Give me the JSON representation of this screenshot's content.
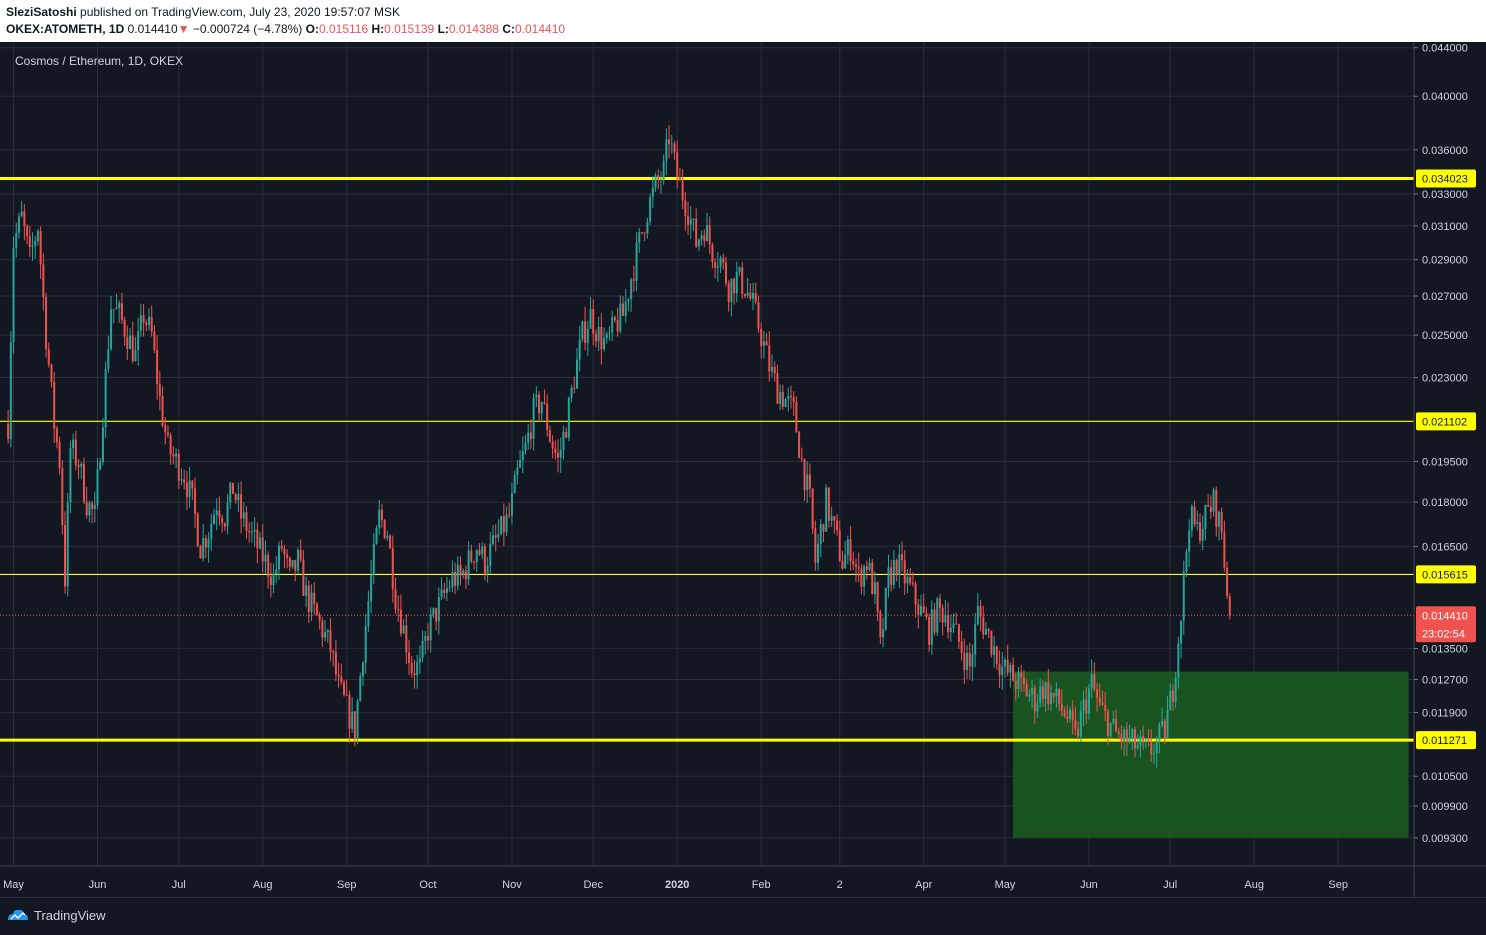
{
  "header": {
    "author": "SleziSatoshi",
    "published_text": "published on TradingView.com, July 23, 2020 19:57:07 MSK",
    "symbol_tf": "OKEX:ATOMETH, 1D",
    "last": "0.014410",
    "change_arrow": "▼",
    "change": "−0.000724 (−4.78%)",
    "o_label": "O:",
    "o": "0.015116",
    "h_label": "H:",
    "h": "0.015139",
    "l_label": "L:",
    "l": "0.014388",
    "c_label": "C:",
    "c": "0.014410"
  },
  "footer": {
    "brand": "TradingView"
  },
  "chart_data": {
    "type": "candlestick",
    "title": "Cosmos / Ethereum, 1D, OKEX",
    "y_scale": "log",
    "ylim": [
      0.0088,
      0.0445
    ],
    "y_ticks": [
      "0.044000",
      "0.040000",
      "0.036000",
      "0.033000",
      "0.031000",
      "0.029000",
      "0.027000",
      "0.025000",
      "0.023000",
      "0.019500",
      "0.018000",
      "0.016500",
      "0.013500",
      "0.012700",
      "0.011900",
      "0.010500",
      "0.009900",
      "0.009300"
    ],
    "x_ticks": [
      "May",
      "Jun",
      "Jul",
      "Aug",
      "Sep",
      "Oct",
      "Nov",
      "Dec",
      "2020",
      "Feb",
      "2",
      "Apr",
      "May",
      "Jun",
      "Jul",
      "Aug",
      "Sep"
    ],
    "x_tick_days": [
      0,
      31,
      61,
      92,
      123,
      153,
      184,
      214,
      245,
      276,
      305,
      336,
      366,
      397,
      427,
      458,
      489
    ],
    "x_range_days": [
      -5,
      517
    ],
    "price_points": [
      [
        -2,
        0.021
      ],
      [
        0,
        0.03
      ],
      [
        3,
        0.0315
      ],
      [
        6,
        0.029
      ],
      [
        9,
        0.031
      ],
      [
        12,
        0.025
      ],
      [
        15,
        0.021
      ],
      [
        17,
        0.0195
      ],
      [
        19,
        0.0155
      ],
      [
        21,
        0.02
      ],
      [
        24,
        0.0195
      ],
      [
        27,
        0.018
      ],
      [
        30,
        0.0175
      ],
      [
        33,
        0.0215
      ],
      [
        36,
        0.0265
      ],
      [
        39,
        0.026
      ],
      [
        42,
        0.025
      ],
      [
        45,
        0.024
      ],
      [
        48,
        0.026
      ],
      [
        51,
        0.025
      ],
      [
        54,
        0.022
      ],
      [
        57,
        0.02
      ],
      [
        60,
        0.0195
      ],
      [
        63,
        0.019
      ],
      [
        66,
        0.018
      ],
      [
        69,
        0.0165
      ],
      [
        72,
        0.017
      ],
      [
        75,
        0.018
      ],
      [
        78,
        0.0175
      ],
      [
        81,
        0.0185
      ],
      [
        84,
        0.0175
      ],
      [
        87,
        0.017
      ],
      [
        90,
        0.0165
      ],
      [
        93,
        0.016
      ],
      [
        96,
        0.0155
      ],
      [
        99,
        0.0165
      ],
      [
        102,
        0.0155
      ],
      [
        105,
        0.016
      ],
      [
        108,
        0.015
      ],
      [
        111,
        0.0145
      ],
      [
        114,
        0.014
      ],
      [
        117,
        0.0135
      ],
      [
        120,
        0.0125
      ],
      [
        123,
        0.012
      ],
      [
        126,
        0.0115
      ],
      [
        129,
        0.0135
      ],
      [
        132,
        0.0155
      ],
      [
        135,
        0.0175
      ],
      [
        138,
        0.017
      ],
      [
        141,
        0.015
      ],
      [
        144,
        0.014
      ],
      [
        147,
        0.013
      ],
      [
        150,
        0.013
      ],
      [
        153,
        0.014
      ],
      [
        156,
        0.0145
      ],
      [
        159,
        0.015
      ],
      [
        162,
        0.0155
      ],
      [
        165,
        0.0155
      ],
      [
        168,
        0.016
      ],
      [
        171,
        0.0165
      ],
      [
        174,
        0.016
      ],
      [
        177,
        0.0165
      ],
      [
        180,
        0.017
      ],
      [
        183,
        0.0175
      ],
      [
        186,
        0.019
      ],
      [
        189,
        0.02
      ],
      [
        192,
        0.0215
      ],
      [
        195,
        0.022
      ],
      [
        198,
        0.0205
      ],
      [
        201,
        0.0195
      ],
      [
        204,
        0.021
      ],
      [
        207,
        0.023
      ],
      [
        210,
        0.025
      ],
      [
        213,
        0.026
      ],
      [
        216,
        0.025
      ],
      [
        219,
        0.0245
      ],
      [
        222,
        0.0255
      ],
      [
        225,
        0.026
      ],
      [
        228,
        0.028
      ],
      [
        231,
        0.03
      ],
      [
        234,
        0.032
      ],
      [
        237,
        0.0335
      ],
      [
        240,
        0.0345
      ],
      [
        242,
        0.037
      ],
      [
        244,
        0.035
      ],
      [
        246,
        0.0335
      ],
      [
        249,
        0.032
      ],
      [
        252,
        0.03
      ],
      [
        255,
        0.031
      ],
      [
        258,
        0.0295
      ],
      [
        261,
        0.029
      ],
      [
        264,
        0.0275
      ],
      [
        267,
        0.028
      ],
      [
        270,
        0.0275
      ],
      [
        273,
        0.0265
      ],
      [
        276,
        0.025
      ],
      [
        279,
        0.0235
      ],
      [
        282,
        0.0225
      ],
      [
        285,
        0.022
      ],
      [
        288,
        0.0215
      ],
      [
        291,
        0.0195
      ],
      [
        294,
        0.018
      ],
      [
        296,
        0.016
      ],
      [
        298,
        0.017
      ],
      [
        300,
        0.018
      ],
      [
        303,
        0.017
      ],
      [
        306,
        0.016
      ],
      [
        309,
        0.0165
      ],
      [
        312,
        0.0155
      ],
      [
        315,
        0.016
      ],
      [
        318,
        0.015
      ],
      [
        320,
        0.0135
      ],
      [
        323,
        0.0155
      ],
      [
        326,
        0.016
      ],
      [
        329,
        0.0155
      ],
      [
        332,
        0.015
      ],
      [
        335,
        0.0145
      ],
      [
        338,
        0.014
      ],
      [
        341,
        0.0145
      ],
      [
        344,
        0.0145
      ],
      [
        347,
        0.014
      ],
      [
        350,
        0.0135
      ],
      [
        353,
        0.013
      ],
      [
        356,
        0.0145
      ],
      [
        359,
        0.014
      ],
      [
        362,
        0.0135
      ],
      [
        365,
        0.013
      ],
      [
        368,
        0.0128
      ],
      [
        371,
        0.0126
      ],
      [
        374,
        0.0124
      ],
      [
        377,
        0.0122
      ],
      [
        380,
        0.0125
      ],
      [
        383,
        0.0123
      ],
      [
        386,
        0.0121
      ],
      [
        389,
        0.0118
      ],
      [
        392,
        0.0113
      ],
      [
        395,
        0.012
      ],
      [
        398,
        0.0126
      ],
      [
        401,
        0.012
      ],
      [
        404,
        0.0117
      ],
      [
        407,
        0.0114
      ],
      [
        410,
        0.0113
      ],
      [
        413,
        0.0112
      ],
      [
        416,
        0.0111
      ],
      [
        419,
        0.011
      ],
      [
        422,
        0.0112
      ],
      [
        425,
        0.0115
      ],
      [
        428,
        0.0125
      ],
      [
        431,
        0.0145
      ],
      [
        434,
        0.0175
      ],
      [
        437,
        0.017
      ],
      [
        440,
        0.0175
      ],
      [
        443,
        0.018
      ],
      [
        446,
        0.017
      ],
      [
        448,
        0.0151
      ],
      [
        449,
        0.0144
      ]
    ],
    "horizontal_levels": [
      {
        "price": 0.034023,
        "label": "0.034023",
        "thickness": "thick"
      },
      {
        "price": 0.021102,
        "label": "0.021102",
        "thickness": "thin"
      },
      {
        "price": 0.015615,
        "label": "0.015615",
        "thickness": "thin"
      },
      {
        "price": 0.011271,
        "label": "0.011271",
        "thickness": "thick"
      }
    ],
    "last_price": {
      "price": 0.01441,
      "label": "0.014410",
      "countdown": "23:02:54"
    },
    "zone": {
      "day_start": 369,
      "day_end": 515,
      "price_top": 0.0129,
      "price_bottom": 0.0093
    },
    "colors": {
      "up": "#26a69a",
      "down": "#ef5350",
      "level": "#ffff00",
      "zone": "#1b5e20",
      "last": "#ef5350",
      "grid": "#2a2e39",
      "text": "#d1d4dc"
    }
  }
}
